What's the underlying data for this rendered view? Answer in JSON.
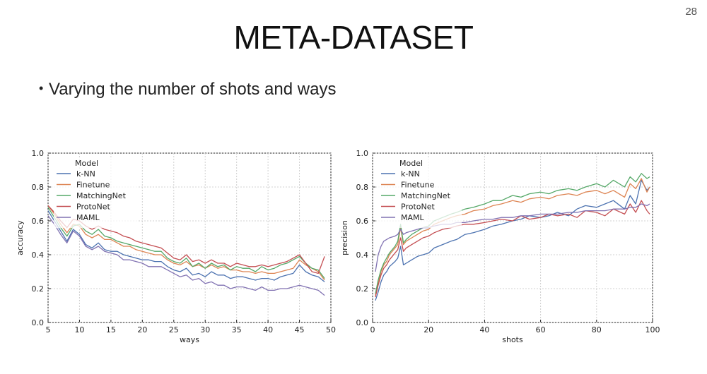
{
  "page_number": "28",
  "title": "META-DATASET",
  "bullet": "Varying the number of shots and ways",
  "chart_data": [
    {
      "type": "line",
      "xlabel": "ways",
      "ylabel": "accuracy",
      "xlim": [
        5,
        50
      ],
      "ylim": [
        0.0,
        1.0
      ],
      "xticks": [
        "5",
        "10",
        "15",
        "20",
        "25",
        "30",
        "35",
        "40",
        "45",
        "50"
      ],
      "yticks": [
        "0.0",
        "0.2",
        "0.4",
        "0.6",
        "0.8",
        "1.0"
      ],
      "grid": true,
      "legend": {
        "title": "Model",
        "placement": "top-left"
      },
      "x": [
        5,
        6,
        7,
        8,
        9,
        10,
        11,
        12,
        13,
        14,
        15,
        16,
        17,
        18,
        19,
        20,
        21,
        22,
        23,
        24,
        25,
        26,
        27,
        28,
        29,
        30,
        31,
        32,
        33,
        34,
        35,
        36,
        37,
        38,
        39,
        40,
        41,
        42,
        43,
        44,
        45,
        46,
        47,
        48,
        49
      ],
      "series": [
        {
          "name": "k-NN",
          "color": "#4c72b0",
          "values": [
            0.66,
            0.6,
            0.54,
            0.48,
            0.55,
            0.52,
            0.46,
            0.44,
            0.47,
            0.43,
            0.42,
            0.42,
            0.4,
            0.39,
            0.38,
            0.37,
            0.37,
            0.36,
            0.36,
            0.33,
            0.31,
            0.3,
            0.32,
            0.28,
            0.29,
            0.27,
            0.3,
            0.28,
            0.28,
            0.26,
            0.27,
            0.27,
            0.26,
            0.25,
            0.26,
            0.26,
            0.25,
            0.27,
            0.28,
            0.29,
            0.34,
            0.3,
            0.28,
            0.27,
            0.24
          ]
        },
        {
          "name": "Finetune",
          "color": "#dd8452",
          "values": [
            0.69,
            0.64,
            0.58,
            0.53,
            0.58,
            0.57,
            0.52,
            0.5,
            0.52,
            0.49,
            0.49,
            0.47,
            0.45,
            0.45,
            0.43,
            0.42,
            0.41,
            0.4,
            0.4,
            0.37,
            0.35,
            0.34,
            0.36,
            0.33,
            0.34,
            0.32,
            0.34,
            0.32,
            0.33,
            0.31,
            0.31,
            0.3,
            0.3,
            0.29,
            0.3,
            0.29,
            0.29,
            0.3,
            0.31,
            0.32,
            0.37,
            0.34,
            0.32,
            0.3,
            0.25
          ]
        },
        {
          "name": "MatchingNet",
          "color": "#55a868",
          "values": [
            0.68,
            0.62,
            0.56,
            0.51,
            0.57,
            0.58,
            0.54,
            0.52,
            0.55,
            0.51,
            0.5,
            0.48,
            0.47,
            0.46,
            0.45,
            0.44,
            0.43,
            0.42,
            0.42,
            0.38,
            0.36,
            0.35,
            0.38,
            0.33,
            0.35,
            0.32,
            0.35,
            0.33,
            0.34,
            0.31,
            0.33,
            0.32,
            0.32,
            0.3,
            0.33,
            0.31,
            0.32,
            0.34,
            0.35,
            0.37,
            0.39,
            0.35,
            0.32,
            0.31,
            0.26
          ]
        },
        {
          "name": "ProtoNet",
          "color": "#c44e52",
          "values": [
            0.69,
            0.65,
            0.6,
            0.56,
            0.61,
            0.6,
            0.57,
            0.55,
            0.57,
            0.55,
            0.54,
            0.53,
            0.51,
            0.5,
            0.48,
            0.47,
            0.46,
            0.45,
            0.44,
            0.41,
            0.38,
            0.37,
            0.4,
            0.36,
            0.37,
            0.35,
            0.37,
            0.35,
            0.35,
            0.33,
            0.35,
            0.34,
            0.33,
            0.33,
            0.34,
            0.33,
            0.34,
            0.35,
            0.36,
            0.38,
            0.4,
            0.35,
            0.3,
            0.29,
            0.39
          ]
        },
        {
          "name": "MAML",
          "color": "#8172b2",
          "values": [
            0.63,
            0.58,
            0.52,
            0.47,
            0.54,
            0.51,
            0.45,
            0.43,
            0.45,
            0.42,
            0.41,
            0.4,
            0.37,
            0.37,
            0.36,
            0.35,
            0.33,
            0.33,
            0.33,
            0.31,
            0.29,
            0.27,
            0.28,
            0.25,
            0.26,
            0.23,
            0.24,
            0.22,
            0.22,
            0.2,
            0.21,
            0.21,
            0.2,
            0.19,
            0.21,
            0.19,
            0.19,
            0.2,
            0.2,
            0.21,
            0.22,
            0.21,
            0.2,
            0.19,
            0.16
          ]
        }
      ]
    },
    {
      "type": "line",
      "xlabel": "shots",
      "ylabel": "precision",
      "xlim": [
        0,
        100
      ],
      "ylim": [
        0.0,
        1.0
      ],
      "xticks": [
        "0",
        "20",
        "40",
        "60",
        "80",
        "100"
      ],
      "yticks": [
        "0.0",
        "0.2",
        "0.4",
        "0.6",
        "0.8",
        "1.0"
      ],
      "grid": true,
      "legend": {
        "title": "Model",
        "placement": "top-left"
      },
      "x": [
        1,
        2,
        3,
        4,
        5,
        6,
        8,
        9,
        10,
        11,
        12,
        14,
        16,
        18,
        20,
        22,
        25,
        28,
        30,
        33,
        36,
        40,
        43,
        46,
        50,
        53,
        56,
        60,
        63,
        66,
        70,
        73,
        76,
        80,
        83,
        86,
        90,
        92,
        94,
        96,
        98,
        99
      ],
      "series": [
        {
          "name": "k-NN",
          "color": "#4c72b0",
          "values": [
            0.13,
            0.18,
            0.24,
            0.28,
            0.3,
            0.33,
            0.36,
            0.38,
            0.45,
            0.34,
            0.35,
            0.37,
            0.39,
            0.4,
            0.41,
            0.44,
            0.46,
            0.48,
            0.49,
            0.52,
            0.53,
            0.55,
            0.57,
            0.58,
            0.6,
            0.61,
            0.63,
            0.62,
            0.63,
            0.65,
            0.63,
            0.67,
            0.69,
            0.68,
            0.7,
            0.72,
            0.67,
            0.75,
            0.7,
            0.84,
            0.78,
            0.8
          ]
        },
        {
          "name": "Finetune",
          "color": "#dd8452",
          "values": [
            0.16,
            0.23,
            0.3,
            0.34,
            0.36,
            0.4,
            0.44,
            0.46,
            0.56,
            0.46,
            0.48,
            0.5,
            0.52,
            0.54,
            0.55,
            0.58,
            0.6,
            0.62,
            0.63,
            0.64,
            0.66,
            0.67,
            0.69,
            0.7,
            0.72,
            0.71,
            0.73,
            0.74,
            0.73,
            0.75,
            0.76,
            0.75,
            0.77,
            0.78,
            0.76,
            0.78,
            0.74,
            0.82,
            0.79,
            0.85,
            0.77,
            0.8
          ]
        },
        {
          "name": "MatchingNet",
          "color": "#55a868",
          "values": [
            0.17,
            0.25,
            0.31,
            0.35,
            0.38,
            0.41,
            0.45,
            0.48,
            0.58,
            0.47,
            0.49,
            0.52,
            0.54,
            0.56,
            0.57,
            0.6,
            0.62,
            0.64,
            0.65,
            0.67,
            0.68,
            0.7,
            0.72,
            0.72,
            0.75,
            0.74,
            0.76,
            0.77,
            0.76,
            0.78,
            0.79,
            0.78,
            0.8,
            0.82,
            0.8,
            0.84,
            0.8,
            0.86,
            0.83,
            0.88,
            0.85,
            0.86
          ]
        },
        {
          "name": "ProtoNet",
          "color": "#c44e52",
          "values": [
            0.15,
            0.22,
            0.28,
            0.32,
            0.34,
            0.37,
            0.41,
            0.43,
            0.5,
            0.42,
            0.44,
            0.46,
            0.48,
            0.5,
            0.51,
            0.53,
            0.55,
            0.56,
            0.57,
            0.58,
            0.58,
            0.59,
            0.6,
            0.61,
            0.6,
            0.63,
            0.61,
            0.62,
            0.64,
            0.63,
            0.64,
            0.62,
            0.66,
            0.65,
            0.63,
            0.67,
            0.64,
            0.7,
            0.65,
            0.72,
            0.66,
            0.64
          ]
        },
        {
          "name": "MAML",
          "color": "#8172b2",
          "values": [
            0.3,
            0.4,
            0.45,
            0.48,
            0.49,
            0.5,
            0.51,
            0.52,
            0.55,
            0.52,
            0.53,
            0.54,
            0.55,
            0.56,
            0.56,
            0.57,
            0.58,
            0.58,
            0.59,
            0.59,
            0.6,
            0.61,
            0.61,
            0.62,
            0.62,
            0.63,
            0.63,
            0.64,
            0.64,
            0.64,
            0.65,
            0.65,
            0.66,
            0.66,
            0.66,
            0.67,
            0.67,
            0.68,
            0.68,
            0.7,
            0.69,
            0.7
          ]
        }
      ]
    }
  ]
}
